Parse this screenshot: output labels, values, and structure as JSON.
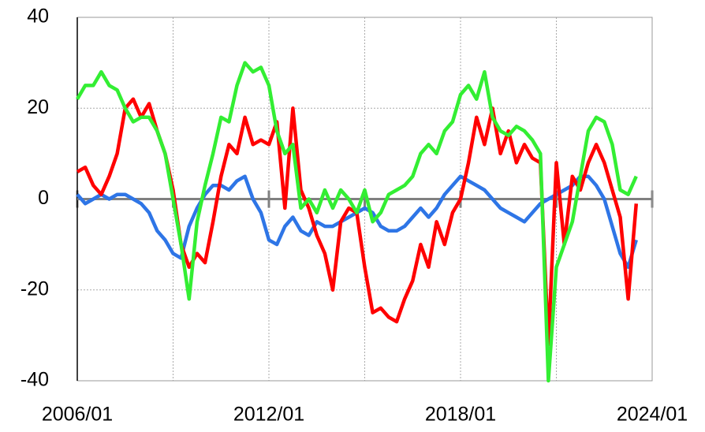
{
  "chart_data": {
    "type": "line",
    "x": [
      "2006/01",
      "2006/04",
      "2006/07",
      "2006/10",
      "2007/01",
      "2007/04",
      "2007/07",
      "2007/10",
      "2008/01",
      "2008/04",
      "2008/07",
      "2008/10",
      "2009/01",
      "2009/04",
      "2009/07",
      "2009/10",
      "2010/01",
      "2010/04",
      "2010/07",
      "2010/10",
      "2011/01",
      "2011/04",
      "2011/07",
      "2011/10",
      "2012/01",
      "2012/04",
      "2012/07",
      "2012/10",
      "2013/01",
      "2013/04",
      "2013/07",
      "2013/10",
      "2014/01",
      "2014/04",
      "2014/07",
      "2014/10",
      "2015/01",
      "2015/04",
      "2015/07",
      "2015/10",
      "2016/01",
      "2016/04",
      "2016/07",
      "2016/10",
      "2017/01",
      "2017/04",
      "2017/07",
      "2017/10",
      "2018/01",
      "2018/04",
      "2018/07",
      "2018/10",
      "2019/01",
      "2019/04",
      "2019/07",
      "2019/10",
      "2020/01",
      "2020/04",
      "2020/07",
      "2020/10",
      "2021/01",
      "2021/04",
      "2021/07",
      "2021/10",
      "2022/01",
      "2022/04",
      "2022/07",
      "2022/10",
      "2023/01",
      "2023/04",
      "2023/07"
    ],
    "series": [
      {
        "color": "#2e75e6",
        "values": [
          1,
          -1,
          0,
          1,
          0,
          1,
          1,
          0,
          -1,
          -3,
          -7,
          -9,
          -12,
          -13,
          -6,
          -2,
          1,
          3,
          3,
          2,
          4,
          5,
          0,
          -3,
          -9,
          -10,
          -6,
          -4,
          -7,
          -8,
          -5,
          -6,
          -6,
          -5,
          -4,
          -3,
          -2,
          -3,
          -6,
          -7,
          -7,
          -6,
          -4,
          -2,
          -4,
          -2,
          1,
          3,
          5,
          4,
          3,
          2,
          0,
          -2,
          -3,
          -4,
          -5,
          -3,
          -1,
          0,
          1,
          2,
          3,
          5,
          5,
          3,
          0,
          -6,
          -12,
          -15,
          -9
        ]
      },
      {
        "color": "#ff0000",
        "values": [
          6,
          7,
          3,
          1,
          5,
          10,
          20,
          22,
          18,
          21,
          15,
          10,
          2,
          -10,
          -15,
          -12,
          -14,
          -5,
          5,
          12,
          10,
          18,
          12,
          13,
          12,
          17,
          -2,
          20,
          2,
          -2,
          -8,
          -12,
          -20,
          -5,
          -2,
          -3,
          -15,
          -25,
          -24,
          -26,
          -27,
          -22,
          -18,
          -10,
          -15,
          -5,
          -10,
          -3,
          0,
          8,
          18,
          12,
          20,
          10,
          15,
          8,
          12,
          9,
          8,
          -32,
          8,
          -10,
          5,
          2,
          8,
          12,
          8,
          2,
          -4,
          -22,
          -1
        ]
      },
      {
        "color": "#33ee33",
        "values": [
          22,
          25,
          25,
          28,
          25,
          24,
          20,
          17,
          18,
          18,
          15,
          10,
          0,
          -10,
          -22,
          -5,
          3,
          10,
          18,
          17,
          25,
          30,
          28,
          29,
          25,
          15,
          10,
          12,
          -2,
          0,
          -3,
          2,
          -2,
          2,
          0,
          -3,
          2,
          -5,
          -3,
          1,
          2,
          3,
          5,
          10,
          12,
          10,
          15,
          17,
          23,
          25,
          22,
          28,
          18,
          15,
          14,
          16,
          15,
          13,
          10,
          -40,
          -15,
          -10,
          -5,
          5,
          15,
          18,
          17,
          12,
          2,
          1,
          5
        ]
      }
    ],
    "xlim": [
      "2006/01",
      "2024/01"
    ],
    "xticks": [
      "2006/01",
      {
        "value": "2009/01"
      },
      "2012/01",
      {
        "value": "2015/01"
      },
      "2018/01",
      {
        "value": "2021/01"
      },
      "2024/01"
    ],
    "ylim": [
      -40,
      40
    ],
    "yticks": [
      -40,
      -20,
      0,
      20,
      40
    ],
    "grid": true
  }
}
